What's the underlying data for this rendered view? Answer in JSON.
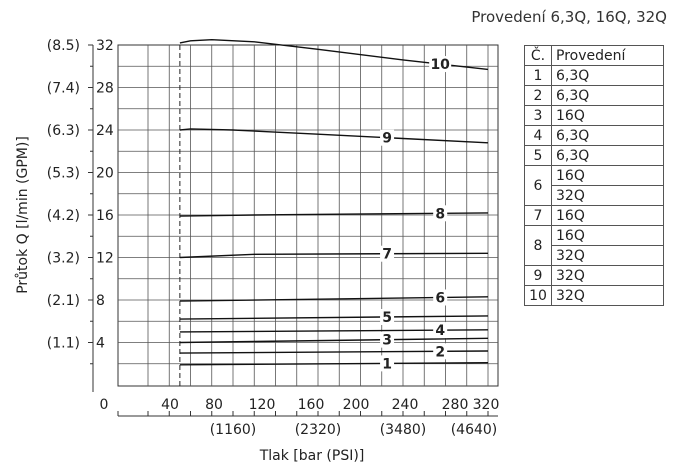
{
  "heading": "Provedení 6,3Q, 16Q, 32Q",
  "chart_data": {
    "type": "line",
    "xlabel": "Tlak [bar (PSI)]",
    "ylabel": "Průtok Q [l/min (GPM)]",
    "xlim": [
      0,
      320
    ],
    "ylim": [
      0,
      32
    ],
    "x_ticks": [
      "0",
      "40",
      "80",
      "120",
      "160",
      "200",
      "240",
      "280",
      "320"
    ],
    "x_secondary_ticks": [
      {
        "x": 80,
        "label": "(1160)"
      },
      {
        "x": 160,
        "label": "(2320)"
      },
      {
        "x": 240,
        "label": "(3480)"
      },
      {
        "x": 320,
        "label": "(4640)"
      }
    ],
    "y_ticks": [
      {
        "y": 4,
        "label": "4",
        "secondary": "(1.1)"
      },
      {
        "y": 8,
        "label": "8",
        "secondary": "(2.1)"
      },
      {
        "y": 12,
        "label": "12",
        "secondary": "(3.2)"
      },
      {
        "y": 16,
        "label": "16",
        "secondary": "(4.2)"
      },
      {
        "y": 20,
        "label": "20",
        "secondary": "(5.3)"
      },
      {
        "y": 24,
        "label": "24",
        "secondary": "(6.3)"
      },
      {
        "y": 28,
        "label": "28",
        "secondary": "(7.4)"
      },
      {
        "y": 32,
        "label": "32",
        "secondary": "(8.5)"
      }
    ],
    "reference_line_x": 30,
    "grid": true,
    "series": [
      {
        "name": "1",
        "label_x": 225,
        "points": [
          [
            30,
            1.9
          ],
          [
            320,
            2.1
          ]
        ]
      },
      {
        "name": "2",
        "label_x": 275,
        "points": [
          [
            30,
            3.0
          ],
          [
            320,
            3.2
          ]
        ]
      },
      {
        "name": "3",
        "label_x": 225,
        "points": [
          [
            30,
            4.0
          ],
          [
            320,
            4.4
          ]
        ]
      },
      {
        "name": "4",
        "label_x": 275,
        "points": [
          [
            30,
            5.0
          ],
          [
            320,
            5.2
          ]
        ]
      },
      {
        "name": "5",
        "label_x": 225,
        "points": [
          [
            30,
            6.2
          ],
          [
            320,
            6.5
          ]
        ]
      },
      {
        "name": "6",
        "label_x": 275,
        "points": [
          [
            30,
            7.9
          ],
          [
            320,
            8.3
          ]
        ]
      },
      {
        "name": "7",
        "label_x": 225,
        "points": [
          [
            30,
            12.0
          ],
          [
            100,
            12.3
          ],
          [
            320,
            12.4
          ]
        ]
      },
      {
        "name": "8",
        "label_x": 275,
        "points": [
          [
            30,
            15.9
          ],
          [
            100,
            16.0
          ],
          [
            320,
            16.2
          ]
        ]
      },
      {
        "name": "9",
        "label_x": 225,
        "points": [
          [
            30,
            24.0
          ],
          [
            40,
            24.1
          ],
          [
            80,
            24.0
          ],
          [
            160,
            23.6
          ],
          [
            240,
            23.2
          ],
          [
            320,
            22.8
          ]
        ]
      },
      {
        "name": "10",
        "label_x": 275,
        "points": [
          [
            30,
            32.2
          ],
          [
            40,
            32.4
          ],
          [
            60,
            32.5
          ],
          [
            100,
            32.3
          ],
          [
            160,
            31.6
          ],
          [
            240,
            30.6
          ],
          [
            320,
            29.7
          ]
        ]
      }
    ]
  },
  "table": {
    "headers": [
      "Č.",
      "Provedení"
    ],
    "rows": [
      {
        "num": "1",
        "variants": [
          "6,3Q"
        ]
      },
      {
        "num": "2",
        "variants": [
          "6,3Q"
        ]
      },
      {
        "num": "3",
        "variants": [
          "16Q"
        ]
      },
      {
        "num": "4",
        "variants": [
          "6,3Q"
        ]
      },
      {
        "num": "5",
        "variants": [
          "6,3Q"
        ]
      },
      {
        "num": "6",
        "variants": [
          "16Q",
          "32Q"
        ]
      },
      {
        "num": "7",
        "variants": [
          "16Q"
        ]
      },
      {
        "num": "8",
        "variants": [
          "16Q",
          "32Q"
        ]
      },
      {
        "num": "9",
        "variants": [
          "32Q"
        ]
      },
      {
        "num": "10",
        "variants": [
          "32Q"
        ]
      }
    ]
  }
}
